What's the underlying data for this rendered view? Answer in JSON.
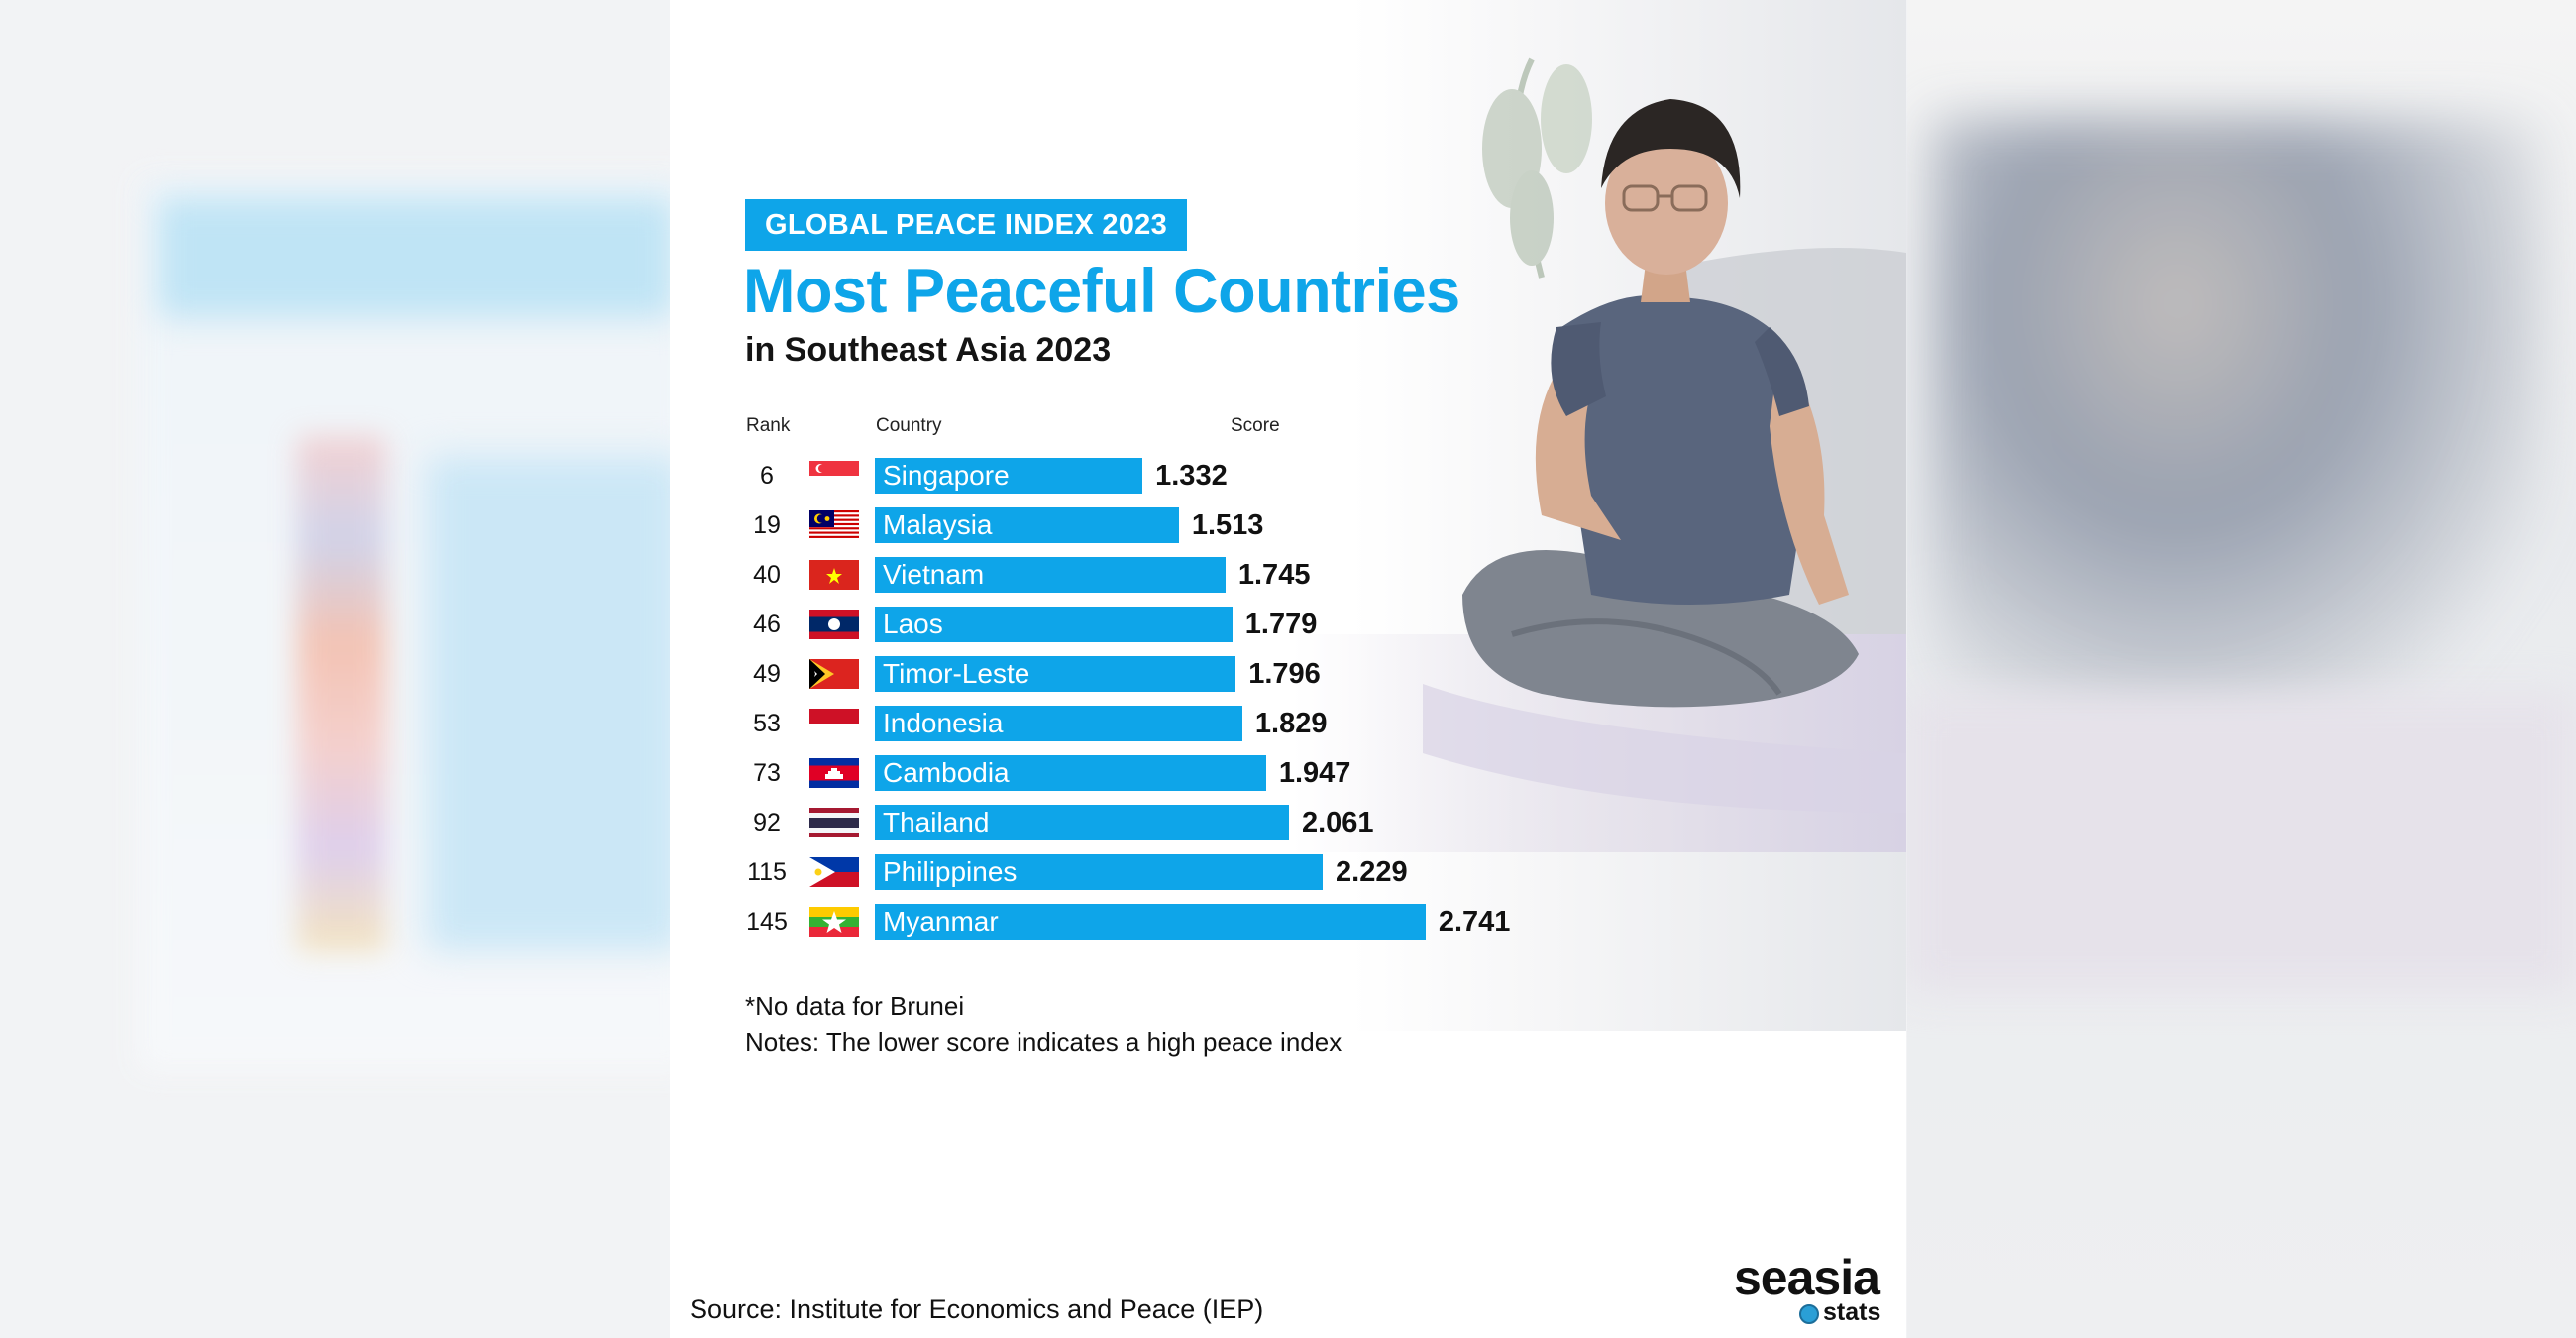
{
  "header": {
    "tag": "GLOBAL PEACE INDEX 2023",
    "title": "Most Peaceful Countries",
    "subtitle": "in Southeast Asia 2023"
  },
  "columns": {
    "rank": "Rank",
    "country": "Country",
    "score": "Score"
  },
  "notes": {
    "no_data": "*No data for Brunei",
    "lower_score": "Notes: The lower score indicates a high peace index"
  },
  "source": "Source: Institute for Economics and Peace (IEP)",
  "logo": {
    "main": "seasia",
    "sub": "stats"
  },
  "colors": {
    "accent": "#0ea5e9",
    "text": "#111111"
  },
  "chart_data": {
    "type": "bar",
    "orientation": "horizontal",
    "title": "Most Peaceful Countries",
    "subtitle": "in Southeast Asia 2023",
    "rows": [
      {
        "rank": "6",
        "country": "Singapore",
        "score": 1.332,
        "score_label": "1.332",
        "flag": "singapore-flag"
      },
      {
        "rank": "19",
        "country": "Malaysia",
        "score": 1.513,
        "score_label": "1.513",
        "flag": "malaysia-flag"
      },
      {
        "rank": "40",
        "country": "Vietnam",
        "score": 1.745,
        "score_label": "1.745",
        "flag": "vietnam-flag"
      },
      {
        "rank": "46",
        "country": "Laos",
        "score": 1.779,
        "score_label": "1.779",
        "flag": "laos-flag"
      },
      {
        "rank": "49",
        "country": "Timor-Leste",
        "score": 1.796,
        "score_label": "1.796",
        "flag": "timor-leste-flag"
      },
      {
        "rank": "53",
        "country": "Indonesia",
        "score": 1.829,
        "score_label": "1.829",
        "flag": "indonesia-flag"
      },
      {
        "rank": "73",
        "country": "Cambodia",
        "score": 1.947,
        "score_label": "1.947",
        "flag": "cambodia-flag"
      },
      {
        "rank": "92",
        "country": "Thailand",
        "score": 2.061,
        "score_label": "2.061",
        "flag": "thailand-flag"
      },
      {
        "rank": "115",
        "country": "Philippines",
        "score": 2.229,
        "score_label": "2.229",
        "flag": "philippines-flag"
      },
      {
        "rank": "145",
        "country": "Myanmar",
        "score": 2.741,
        "score_label": "2.741",
        "flag": "myanmar-flag"
      }
    ]
  }
}
